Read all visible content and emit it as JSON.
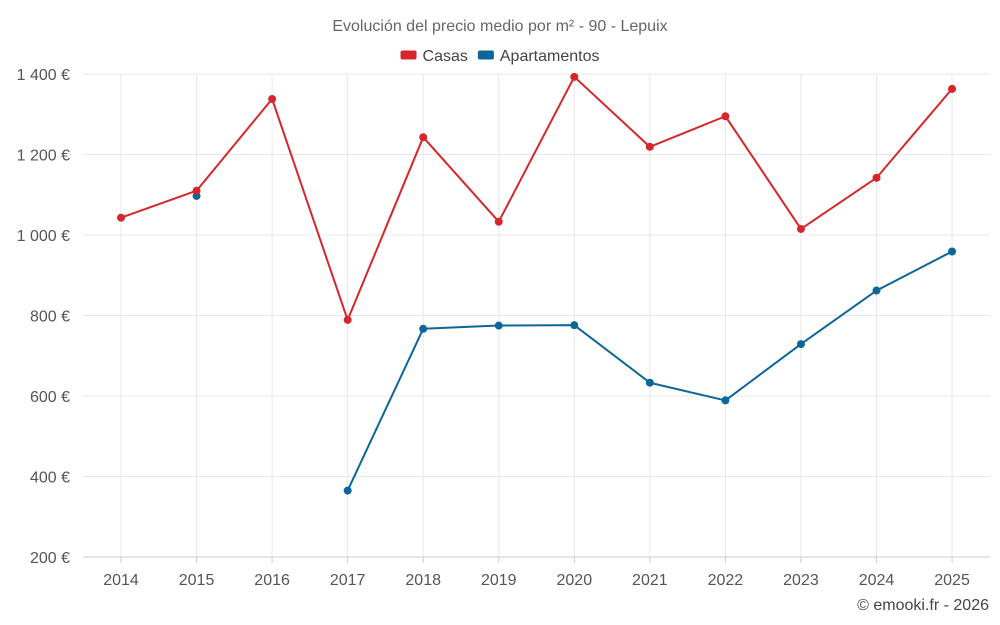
{
  "chart_data": {
    "type": "line",
    "title": "Evolución del precio medio por m² - 90 - Lepuix",
    "xlabel": "",
    "ylabel": "",
    "categories": [
      "2014",
      "2015",
      "2016",
      "2017",
      "2018",
      "2019",
      "2020",
      "2021",
      "2022",
      "2023",
      "2024",
      "2025"
    ],
    "ylim": [
      200,
      1400
    ],
    "yticks": [
      200,
      400,
      600,
      800,
      1000,
      1200,
      1400
    ],
    "ytick_labels": [
      "200 €",
      "400 €",
      "600 €",
      "800 €",
      "1 000 €",
      "1 200 €",
      "1 400 €"
    ],
    "grid": true,
    "legend_position": "top-center",
    "series": [
      {
        "name": "Casas",
        "color": "#d7262b",
        "values": [
          1043,
          1110,
          1338,
          789,
          1243,
          1033,
          1393,
          1219,
          1295,
          1015,
          1142,
          1363
        ]
      },
      {
        "name": "Apartamentos",
        "color": "#0d6699",
        "values": [
          null,
          1097,
          null,
          365,
          767,
          775,
          776,
          633,
          589,
          729,
          862,
          959
        ]
      }
    ]
  },
  "credit": "© emooki.fr - 2026"
}
